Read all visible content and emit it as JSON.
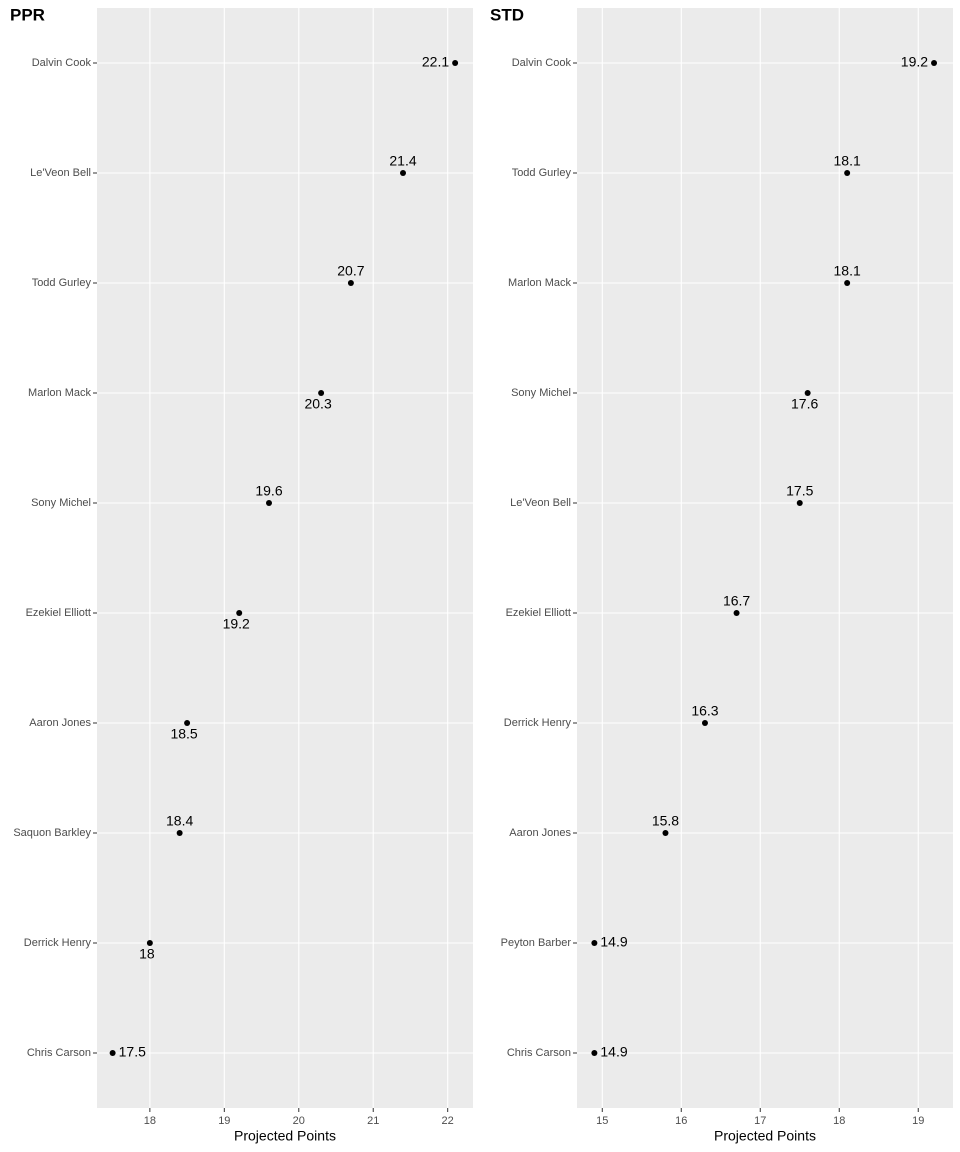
{
  "chart_data": [
    {
      "type": "dot",
      "title": "PPR",
      "x_label": "Projected Points",
      "categories": [
        "Dalvin Cook",
        "Le'Veon Bell",
        "Todd Gurley",
        "Marlon Mack",
        "Sony Michel",
        "Ezekiel Elliott",
        "Aaron Jones",
        "Saquon Barkley",
        "Derrick Henry",
        "Chris Carson"
      ],
      "values": [
        22.1,
        21.4,
        20.7,
        20.3,
        19.6,
        19.2,
        18.5,
        18.4,
        18,
        17.5
      ],
      "color": "#000000",
      "xlim": [
        17.29,
        22.34
      ],
      "xticks": [
        18,
        19,
        20,
        21,
        22
      ],
      "grid": true
    },
    {
      "type": "dot",
      "title": "STD",
      "x_label": "Projected Points",
      "categories": [
        "Dalvin Cook",
        "Todd Gurley",
        "Marlon Mack",
        "Sony Michel",
        "Le'Veon Bell",
        "Ezekiel Elliott",
        "Derrick Henry",
        "Aaron Jones",
        "Peyton Barber",
        "Chris Carson"
      ],
      "values": [
        19.2,
        18.1,
        18.1,
        17.6,
        17.5,
        16.7,
        16.3,
        15.8,
        14.9,
        14.9
      ],
      "color": "#000000",
      "xlim": [
        14.68,
        19.44
      ],
      "xticks": [
        15,
        16,
        17,
        18,
        19
      ],
      "grid": true
    }
  ]
}
